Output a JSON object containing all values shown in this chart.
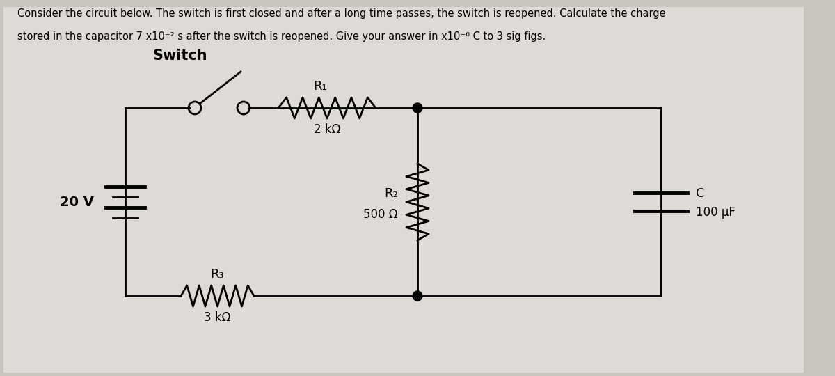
{
  "bg_color": "#c8c4be",
  "circuit_bg": "#e8e5e0",
  "text_color": "#000000",
  "line_color": "#000000",
  "switch_label": "Switch",
  "R1_label": "R₁",
  "R1_val": "2 kΩ",
  "R2_label": "R₂",
  "R2_val": "500 Ω",
  "R3_label": "R₃",
  "R3_val": "3 kΩ",
  "C_label": "C",
  "C_val": "100 μF",
  "V_label": "20 V",
  "title_line1": "Consider the circuit below. The switch is first closed and after a long time passes, the switch is reopened. Calculate the charge",
  "title_line2": "stored in the capacitor 7 x10⁻² s after the switch is reopened. Give your answer in x10⁻⁶ C to 3 sig figs.",
  "title_fontsize": 10.5,
  "label_fontsize": 13,
  "val_fontsize": 12,
  "switch_fontsize": 15
}
